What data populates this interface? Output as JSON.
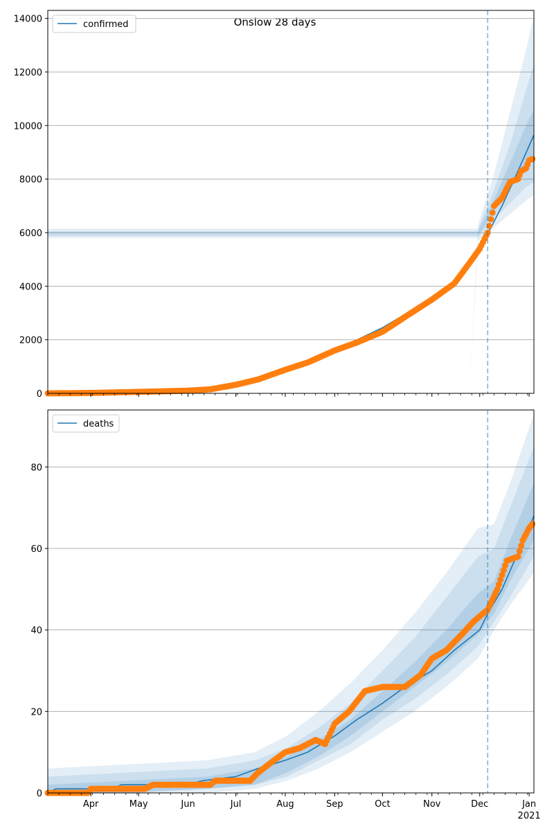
{
  "title": "Onslow 28 days",
  "colors": {
    "model_line": "#1f77b4",
    "observed": "#ff7f0e",
    "band": "#1f77b4",
    "forecast_marker": "#1f77b4",
    "grid": "#b0b0b0"
  },
  "x_axis": {
    "start": "2020-03-05",
    "end": "2021-01-04",
    "forecast_start": "2020-12-06",
    "ticks": [
      {
        "date": "2020-04-01",
        "label": "Apr"
      },
      {
        "date": "2020-05-01",
        "label": "May"
      },
      {
        "date": "2020-06-01",
        "label": "Jun"
      },
      {
        "date": "2020-07-01",
        "label": "Jul"
      },
      {
        "date": "2020-08-01",
        "label": "Aug"
      },
      {
        "date": "2020-09-01",
        "label": "Sep"
      },
      {
        "date": "2020-10-01",
        "label": "Oct"
      },
      {
        "date": "2020-11-01",
        "label": "Nov"
      },
      {
        "date": "2020-12-01",
        "label": "Dec"
      },
      {
        "date": "2021-01-01",
        "label": "Jan"
      }
    ],
    "year_label": "2021"
  },
  "chart_data": [
    {
      "type": "line",
      "series_name": "confirmed",
      "ylim": [
        0,
        14300
      ],
      "yticks": [
        0,
        2000,
        4000,
        6000,
        8000,
        10000,
        12000,
        14000
      ],
      "grid": "horizontal",
      "legend": "top-left",
      "model": [
        [
          "2020-03-05",
          5
        ],
        [
          "2020-04-01",
          20
        ],
        [
          "2020-05-01",
          60
        ],
        [
          "2020-06-01",
          110
        ],
        [
          "2020-06-15",
          160
        ],
        [
          "2020-07-01",
          330
        ],
        [
          "2020-07-15",
          560
        ],
        [
          "2020-08-01",
          900
        ],
        [
          "2020-08-15",
          1200
        ],
        [
          "2020-09-01",
          1650
        ],
        [
          "2020-09-15",
          2000
        ],
        [
          "2020-10-01",
          2450
        ],
        [
          "2020-10-15",
          2950
        ],
        [
          "2020-11-01",
          3600
        ],
        [
          "2020-11-15",
          4200
        ],
        [
          "2020-12-01",
          5400
        ],
        [
          "2020-12-06",
          5950
        ],
        [
          "2020-12-15",
          7000
        ],
        [
          "2020-12-25",
          8300
        ],
        [
          "2021-01-04",
          9650
        ]
      ],
      "bands": [
        {
          "opacity": 0.12,
          "lower": [
            [
              0,
              0
            ],
            [
              100,
              0
            ],
            [
              200,
              0
            ],
            [
              245,
              50
            ],
            [
              260,
              150
            ],
            [
              265,
              300
            ],
            [
              270,
              5700
            ],
            [
              280,
              6200
            ],
            [
              290,
              6700
            ],
            [
              300,
              7200
            ],
            [
              305,
              7400
            ]
          ],
          "upper": [
            [
              0,
              0
            ],
            [
              100,
              0
            ],
            [
              200,
              0
            ],
            [
              245,
              50
            ],
            [
              260,
              150
            ],
            [
              265,
              300
            ],
            [
              270,
              6300
            ],
            [
              280,
              8200
            ],
            [
              290,
              10500
            ],
            [
              300,
              12800
            ],
            [
              305,
              14100
            ]
          ]
        },
        {
          "opacity": 0.12,
          "lower": [
            [
              270,
              5800
            ],
            [
              280,
              6500
            ],
            [
              290,
              7100
            ],
            [
              300,
              7700
            ],
            [
              305,
              7900
            ]
          ],
          "upper": [
            [
              270,
              6150
            ],
            [
              280,
              7600
            ],
            [
              290,
              9300
            ],
            [
              300,
              11300
            ],
            [
              305,
              12300
            ]
          ]
        },
        {
          "opacity": 0.15,
          "lower": [
            [
              270,
              5880
            ],
            [
              280,
              6800
            ],
            [
              290,
              7600
            ],
            [
              300,
              8500
            ],
            [
              305,
              8900
            ]
          ],
          "upper": [
            [
              270,
              6050
            ],
            [
              280,
              7250
            ],
            [
              290,
              8600
            ],
            [
              300,
              10000
            ],
            [
              305,
              10600
            ]
          ]
        }
      ],
      "observed": [
        [
          "2020-03-05",
          0
        ],
        [
          "2020-04-01",
          15
        ],
        [
          "2020-05-01",
          55
        ],
        [
          "2020-06-01",
          100
        ],
        [
          "2020-06-15",
          150
        ],
        [
          "2020-07-01",
          320
        ],
        [
          "2020-07-15",
          520
        ],
        [
          "2020-08-01",
          880
        ],
        [
          "2020-08-15",
          1150
        ],
        [
          "2020-09-01",
          1600
        ],
        [
          "2020-09-15",
          1900
        ],
        [
          "2020-10-01",
          2300
        ],
        [
          "2020-10-15",
          2850
        ],
        [
          "2020-11-01",
          3500
        ],
        [
          "2020-11-15",
          4100
        ],
        [
          "2020-11-25",
          4900
        ],
        [
          "2020-12-01",
          5400
        ],
        [
          "2020-12-06",
          6000
        ],
        [
          "2020-12-10",
          7000
        ],
        [
          "2020-12-15",
          7300
        ],
        [
          "2020-12-20",
          7900
        ],
        [
          "2020-12-25",
          8000
        ],
        [
          "2020-12-27",
          8300
        ],
        [
          "2020-12-30",
          8400
        ],
        [
          "2021-01-01",
          8700
        ],
        [
          "2021-01-03",
          8750
        ]
      ]
    },
    {
      "type": "line",
      "series_name": "deaths",
      "ylim": [
        0,
        94
      ],
      "yticks": [
        0,
        20,
        40,
        60,
        80
      ],
      "grid": "horizontal",
      "legend": "top-left",
      "model": [
        [
          "2020-03-05",
          0
        ],
        [
          "2020-03-10",
          1
        ],
        [
          "2020-04-15",
          1
        ],
        [
          "2020-04-20",
          2
        ],
        [
          "2020-06-01",
          2
        ],
        [
          "2020-06-10",
          3
        ],
        [
          "2020-07-01",
          4
        ],
        [
          "2020-07-15",
          6
        ],
        [
          "2020-08-01",
          8
        ],
        [
          "2020-08-15",
          10
        ],
        [
          "2020-09-01",
          14
        ],
        [
          "2020-09-15",
          18
        ],
        [
          "2020-10-01",
          22
        ],
        [
          "2020-10-15",
          26
        ],
        [
          "2020-11-01",
          30
        ],
        [
          "2020-11-15",
          35
        ],
        [
          "2020-12-01",
          40
        ],
        [
          "2020-12-06",
          44
        ],
        [
          "2020-12-15",
          50
        ],
        [
          "2020-12-25",
          59
        ],
        [
          "2021-01-04",
          68
        ]
      ],
      "bands": [
        {
          "opacity": 0.12,
          "lower": [
            [
              0,
              0
            ],
            [
              50,
              0
            ],
            [
              100,
              0
            ],
            [
              130,
              1
            ],
            [
              150,
              3
            ],
            [
              170,
              6
            ],
            [
              190,
              10
            ],
            [
              210,
              15
            ],
            [
              230,
              20
            ],
            [
              250,
              26
            ],
            [
              270,
              33
            ],
            [
              280,
              40
            ],
            [
              290,
              46
            ],
            [
              305,
              54
            ]
          ],
          "upper": [
            [
              0,
              6
            ],
            [
              50,
              7
            ],
            [
              100,
              8
            ],
            [
              130,
              10
            ],
            [
              150,
              14
            ],
            [
              170,
              20
            ],
            [
              190,
              27
            ],
            [
              210,
              35
            ],
            [
              230,
              44
            ],
            [
              250,
              54
            ],
            [
              270,
              65
            ],
            [
              280,
              66
            ],
            [
              290,
              76
            ],
            [
              305,
              93
            ]
          ]
        },
        {
          "opacity": 0.12,
          "lower": [
            [
              0,
              0
            ],
            [
              50,
              0
            ],
            [
              100,
              1
            ],
            [
              130,
              2
            ],
            [
              150,
              4
            ],
            [
              170,
              8
            ],
            [
              190,
              12
            ],
            [
              210,
              18
            ],
            [
              230,
              23
            ],
            [
              250,
              29
            ],
            [
              270,
              36
            ],
            [
              280,
              42
            ],
            [
              290,
              48
            ],
            [
              305,
              58
            ]
          ],
          "upper": [
            [
              0,
              4
            ],
            [
              50,
              5
            ],
            [
              100,
              6
            ],
            [
              130,
              8
            ],
            [
              150,
              11
            ],
            [
              170,
              16
            ],
            [
              190,
              22
            ],
            [
              210,
              30
            ],
            [
              230,
              38
            ],
            [
              250,
              48
            ],
            [
              270,
              58
            ],
            [
              280,
              60
            ],
            [
              290,
              70
            ],
            [
              305,
              85
            ]
          ]
        },
        {
          "opacity": 0.15,
          "lower": [
            [
              0,
              0
            ],
            [
              50,
              0
            ],
            [
              100,
              1
            ],
            [
              130,
              2
            ],
            [
              150,
              5
            ],
            [
              170,
              9
            ],
            [
              190,
              14
            ],
            [
              210,
              20
            ],
            [
              230,
              26
            ],
            [
              250,
              32
            ],
            [
              270,
              39
            ],
            [
              280,
              44
            ],
            [
              290,
              52
            ],
            [
              305,
              62
            ]
          ],
          "upper": [
            [
              0,
              2
            ],
            [
              50,
              3
            ],
            [
              100,
              4
            ],
            [
              130,
              6
            ],
            [
              150,
              9
            ],
            [
              170,
              13
            ],
            [
              190,
              18
            ],
            [
              210,
              25
            ],
            [
              230,
              32
            ],
            [
              250,
              40
            ],
            [
              270,
              49
            ],
            [
              280,
              52
            ],
            [
              290,
              62
            ],
            [
              305,
              76
            ]
          ]
        }
      ],
      "observed": [
        [
          "2020-03-05",
          0
        ],
        [
          "2020-03-30",
          0
        ],
        [
          "2020-04-01",
          1
        ],
        [
          "2020-05-05",
          1
        ],
        [
          "2020-05-10",
          2
        ],
        [
          "2020-06-15",
          2
        ],
        [
          "2020-06-18",
          3
        ],
        [
          "2020-07-10",
          3
        ],
        [
          "2020-07-15",
          5
        ],
        [
          "2020-07-25",
          8
        ],
        [
          "2020-08-01",
          10
        ],
        [
          "2020-08-10",
          11
        ],
        [
          "2020-08-20",
          13
        ],
        [
          "2020-08-26",
          12
        ],
        [
          "2020-09-01",
          17
        ],
        [
          "2020-09-10",
          20
        ],
        [
          "2020-09-20",
          25
        ],
        [
          "2020-10-01",
          26
        ],
        [
          "2020-10-15",
          26
        ],
        [
          "2020-10-25",
          29
        ],
        [
          "2020-11-01",
          33
        ],
        [
          "2020-11-10",
          35
        ],
        [
          "2020-11-20",
          39
        ],
        [
          "2020-11-27",
          42
        ],
        [
          "2020-12-06",
          45
        ],
        [
          "2020-12-12",
          50
        ],
        [
          "2020-12-18",
          57
        ],
        [
          "2020-12-25",
          58
        ],
        [
          "2020-12-28",
          62
        ],
        [
          "2021-01-01",
          65
        ],
        [
          "2021-01-03",
          66
        ]
      ]
    }
  ]
}
